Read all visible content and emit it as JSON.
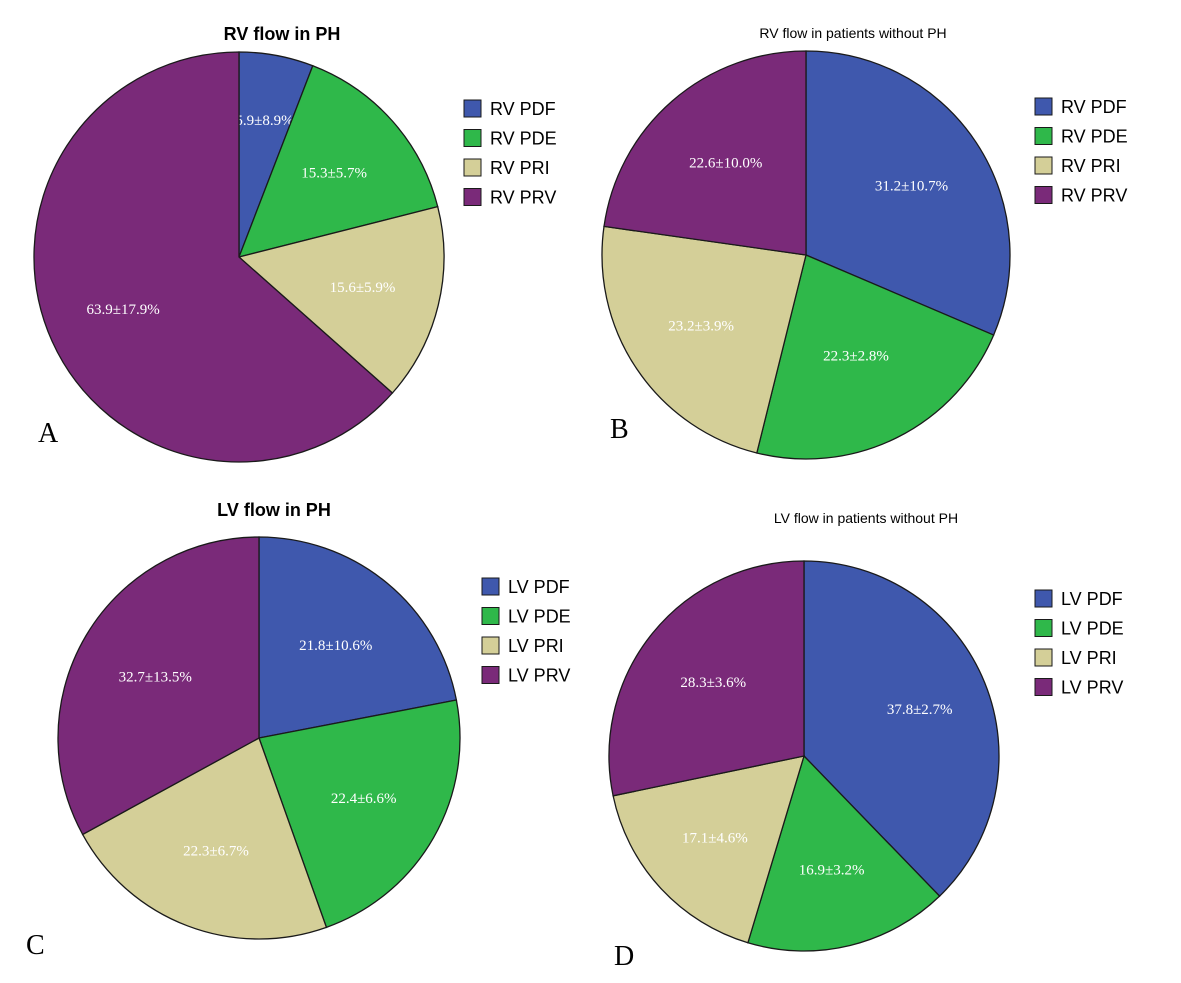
{
  "colors": {
    "PDF": "#3f58ad",
    "PDE": "#2fb84a",
    "PRI": "#d4cf98",
    "PRV": "#7a2a79",
    "stroke": "#1a1a1a"
  },
  "chart_data": [
    {
      "type": "pie",
      "panel": "A",
      "title": "RV flow in PH",
      "title_style": "bold",
      "categories": [
        "RV PDF",
        "RV PDE",
        "RV PRI",
        "RV PRV"
      ],
      "values": [
        5.9,
        15.3,
        15.6,
        63.9
      ],
      "labels": [
        "5.9±8.9%",
        "15.3±5.7%",
        "15.6±5.9%",
        "63.9±17.9%"
      ],
      "legend": [
        "RV PDF",
        "RV PDE",
        "RV PRI",
        "RV PRV"
      ],
      "color_keys": [
        "PDF",
        "PDE",
        "PRI",
        "PRV"
      ]
    },
    {
      "type": "pie",
      "panel": "B",
      "title": "RV flow in patients without PH",
      "title_style": "normal",
      "categories": [
        "RV PDF",
        "RV PDE",
        "RV PRI",
        "RV PRV"
      ],
      "values": [
        31.2,
        22.3,
        23.2,
        22.6
      ],
      "labels": [
        "31.2±10.7%",
        "22.3±2.8%",
        "23.2±3.9%",
        "22.6±10.0%"
      ],
      "legend": [
        "RV PDF",
        "RV PDE",
        "RV PRI",
        "RV PRV"
      ],
      "color_keys": [
        "PDF",
        "PDE",
        "PRI",
        "PRV"
      ]
    },
    {
      "type": "pie",
      "panel": "C",
      "title": "LV flow in PH",
      "title_style": "bold",
      "categories": [
        "LV PDF",
        "LV PDE",
        "LV PRI",
        "LV PRV"
      ],
      "values": [
        21.8,
        22.4,
        22.3,
        32.7
      ],
      "labels": [
        "21.8±10.6%",
        "22.4±6.6%",
        "22.3±6.7%",
        "32.7±13.5%"
      ],
      "legend": [
        "LV PDF",
        "LV PDE",
        "LV PRI",
        "LV PRV"
      ],
      "color_keys": [
        "PDF",
        "PDE",
        "PRI",
        "PRV"
      ]
    },
    {
      "type": "pie",
      "panel": "D",
      "title": "LV flow in patients  without PH",
      "title_style": "normal",
      "categories": [
        "LV PDF",
        "LV PDE",
        "LV PRI",
        "LV PRV"
      ],
      "values": [
        37.8,
        16.9,
        17.1,
        28.3
      ],
      "labels": [
        "37.8±2.7%",
        "16.9±3.2%",
        "17.1±4.6%",
        "28.3±3.6%"
      ],
      "legend": [
        "LV PDF",
        "LV PDE",
        "LV PRI",
        "LV PRV"
      ],
      "color_keys": [
        "PDF",
        "PDE",
        "PRI",
        "PRV"
      ]
    }
  ]
}
